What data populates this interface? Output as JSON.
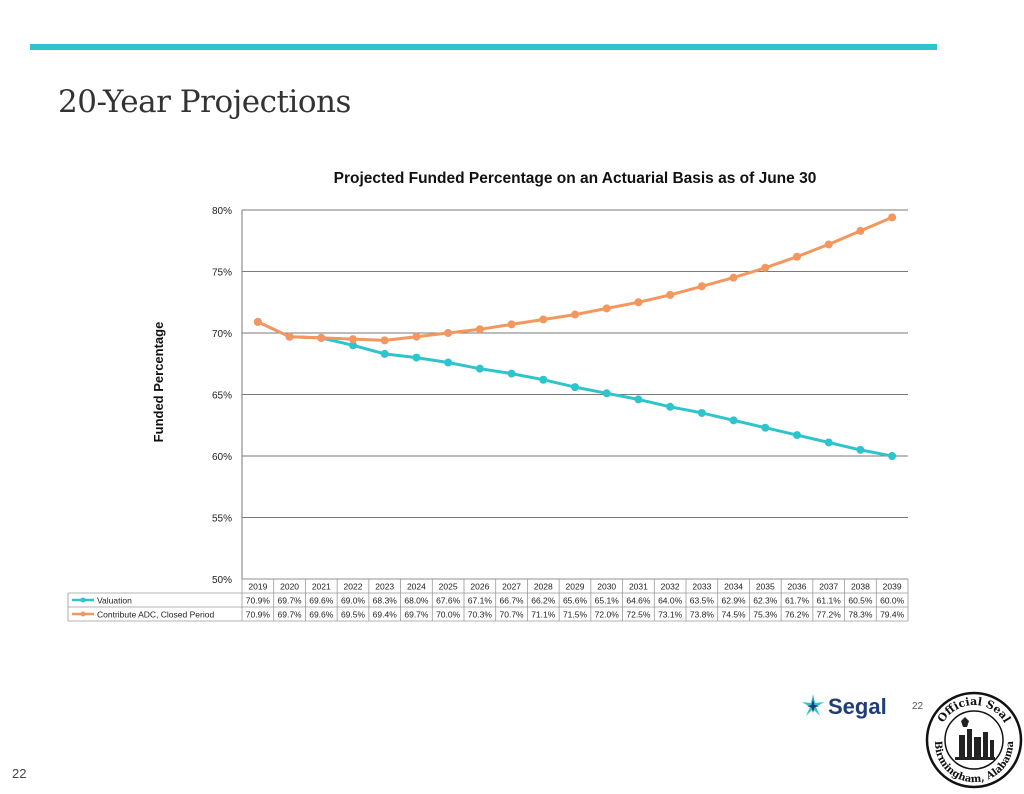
{
  "page": {
    "title": "20-Year Projections",
    "page_number": "22",
    "slide_number": "22",
    "logo_text": "Segal",
    "seal_text_top": "Official Seal",
    "seal_text_bottom": "Birmingham, Alabama",
    "accent_color": "#2ec4cc"
  },
  "chart_data": {
    "type": "line",
    "title": "Projected Funded Percentage on an Actuarial Basis as of June 30",
    "xlabel": "",
    "ylabel": "Funded Percentage",
    "ylim": [
      50,
      80
    ],
    "yticks": [
      "50%",
      "55%",
      "60%",
      "65%",
      "70%",
      "75%",
      "80%"
    ],
    "grid": true,
    "legend": "data-table-below",
    "categories": [
      "2019",
      "2020",
      "2021",
      "2022",
      "2023",
      "2024",
      "2025",
      "2026",
      "2027",
      "2028",
      "2029",
      "2030",
      "2031",
      "2032",
      "2033",
      "2034",
      "2035",
      "2036",
      "2037",
      "2038",
      "2039"
    ],
    "series": [
      {
        "name": "Valuation",
        "color": "#2ec4cc",
        "values": [
          70.9,
          69.7,
          69.6,
          69.0,
          68.3,
          68.0,
          67.6,
          67.1,
          66.7,
          66.2,
          65.6,
          65.1,
          64.6,
          64.0,
          63.5,
          62.9,
          62.3,
          61.7,
          61.1,
          60.5,
          60.0
        ],
        "labels": [
          "70.9%",
          "69.7%",
          "69.6%",
          "69.0%",
          "68.3%",
          "68.0%",
          "67.6%",
          "67.1%",
          "66.7%",
          "66.2%",
          "65.6%",
          "65.1%",
          "64.6%",
          "64.0%",
          "63.5%",
          "62.9%",
          "62.3%",
          "61.7%",
          "61.1%",
          "60.5%",
          "60.0%"
        ]
      },
      {
        "name": "Contribute ADC, Closed Period",
        "color": "#f4975e",
        "values": [
          70.9,
          69.7,
          69.6,
          69.5,
          69.4,
          69.7,
          70.0,
          70.3,
          70.7,
          71.1,
          71.5,
          72.0,
          72.5,
          73.1,
          73.8,
          74.5,
          75.3,
          76.2,
          77.2,
          78.3,
          79.4
        ],
        "labels": [
          "70.9%",
          "69.7%",
          "69.6%",
          "69.5%",
          "69.4%",
          "69.7%",
          "70.0%",
          "70.3%",
          "70.7%",
          "71.1%",
          "71.5%",
          "72.0%",
          "72.5%",
          "73.1%",
          "73.8%",
          "74.5%",
          "75.3%",
          "76.2%",
          "77.2%",
          "78.3%",
          "79.4%"
        ]
      }
    ]
  }
}
